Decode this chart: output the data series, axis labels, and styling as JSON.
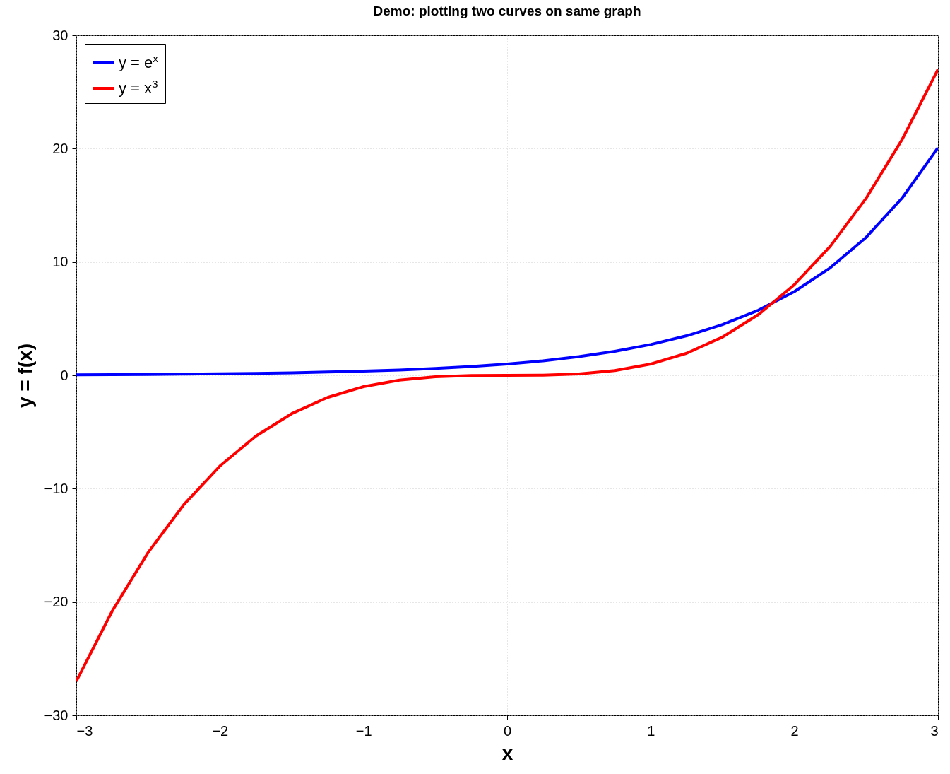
{
  "chart_data": {
    "type": "line",
    "title": "Demo: plotting two curves on same graph",
    "xlabel": "x",
    "ylabel": "y = f(x)",
    "x": [
      -3,
      -2.75,
      -2.5,
      -2.25,
      -2,
      -1.75,
      -1.5,
      -1.25,
      -1,
      -0.75,
      -0.5,
      -0.25,
      0,
      0.25,
      0.5,
      0.75,
      1,
      1.25,
      1.5,
      1.75,
      2,
      2.25,
      2.5,
      2.75,
      3
    ],
    "series": [
      {
        "name": "y = e$^{x}$",
        "color": "#0000ff",
        "values": [
          0.05,
          0.06,
          0.08,
          0.11,
          0.14,
          0.17,
          0.22,
          0.29,
          0.37,
          0.47,
          0.61,
          0.78,
          1,
          1.28,
          1.65,
          2.12,
          2.72,
          3.49,
          4.48,
          5.75,
          7.39,
          9.49,
          12.18,
          15.64,
          20.09
        ]
      },
      {
        "name": "y = x$^{3}$",
        "color": "#ff0000",
        "values": [
          -27,
          -20.8,
          -15.63,
          -11.39,
          -8,
          -5.36,
          -3.38,
          -1.95,
          -1,
          -0.42,
          -0.13,
          -0.02,
          0,
          0.02,
          0.13,
          0.42,
          1,
          1.95,
          3.38,
          5.36,
          8,
          11.39,
          15.63,
          20.8,
          27
        ]
      }
    ],
    "xlim": [
      -3,
      3
    ],
    "ylim": [
      -30,
      30
    ],
    "xticks": [
      -3,
      -2,
      -1,
      0,
      1,
      2,
      3
    ],
    "yticks": [
      -30,
      -20,
      -10,
      0,
      10,
      20,
      30
    ],
    "grid": true,
    "legend": "top left"
  }
}
